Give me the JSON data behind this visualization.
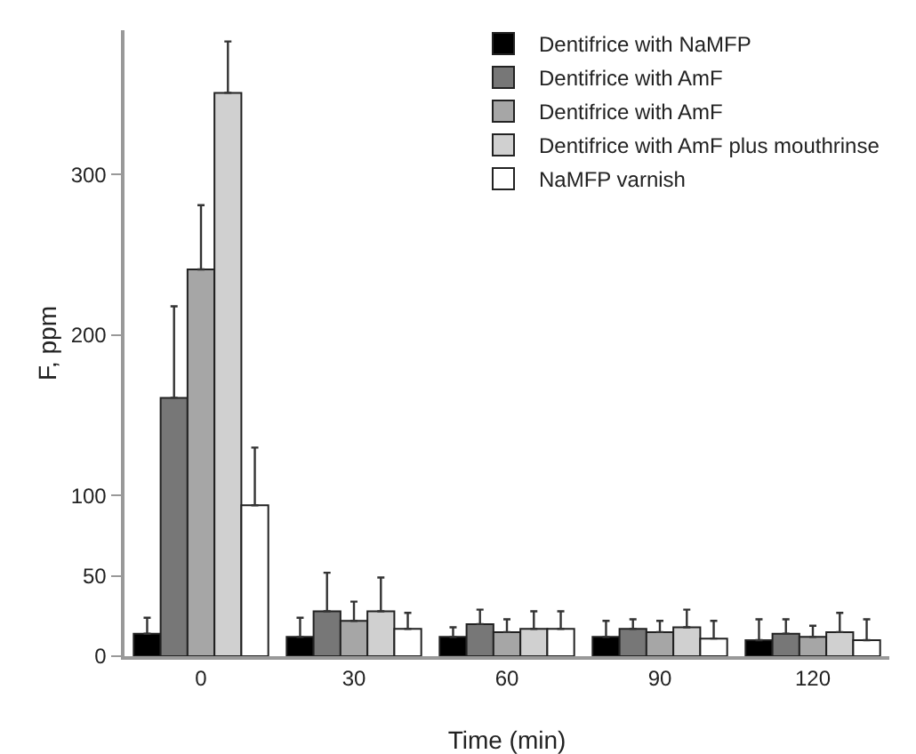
{
  "chart_data": {
    "type": "bar",
    "xlabel": "Time (min)",
    "ylabel": "F, ppm",
    "categories": [
      "0",
      "30",
      "60",
      "90",
      "120"
    ],
    "series": [
      {
        "name": "Dentifrice with NaMFP",
        "color": "#000000",
        "values": [
          14,
          12,
          12,
          12,
          10
        ],
        "errors": [
          [
            14,
            24
          ],
          [
            12,
            24
          ],
          [
            12,
            18
          ],
          [
            12,
            22
          ],
          [
            10,
            23
          ]
        ]
      },
      {
        "name": "Dentifrice with AmF",
        "color": "#777777",
        "values": [
          161,
          28,
          20,
          17,
          14
        ],
        "errors": [
          [
            161,
            218
          ],
          [
            28,
            52
          ],
          [
            20,
            29
          ],
          [
            17,
            23
          ],
          [
            14,
            23
          ]
        ]
      },
      {
        "name": "Dentifrice with AmF",
        "color": "#a6a6a6",
        "values": [
          241,
          22,
          15,
          15,
          12
        ],
        "errors": [
          [
            241,
            281
          ],
          [
            22,
            34
          ],
          [
            15,
            23
          ],
          [
            15,
            22
          ],
          [
            12,
            19
          ]
        ]
      },
      {
        "name": "Dentifrice with AmF plus mouthrinse",
        "color": "#d0d0d0",
        "values": [
          351,
          28,
          17,
          18,
          15
        ],
        "errors": [
          [
            351,
            383
          ],
          [
            28,
            49
          ],
          [
            17,
            28
          ],
          [
            18,
            29
          ],
          [
            15,
            27
          ]
        ]
      },
      {
        "name": "NaMFP varnish",
        "color": "#ffffff",
        "values": [
          94,
          17,
          17,
          11,
          10
        ],
        "errors": [
          [
            94,
            130
          ],
          [
            17,
            27
          ],
          [
            17,
            28
          ],
          [
            11,
            22
          ],
          [
            10,
            23
          ]
        ]
      }
    ],
    "ylim": [
      0,
      390
    ],
    "yticks": [
      0,
      50,
      100,
      200,
      300
    ],
    "grid": false,
    "legend": "top right"
  }
}
